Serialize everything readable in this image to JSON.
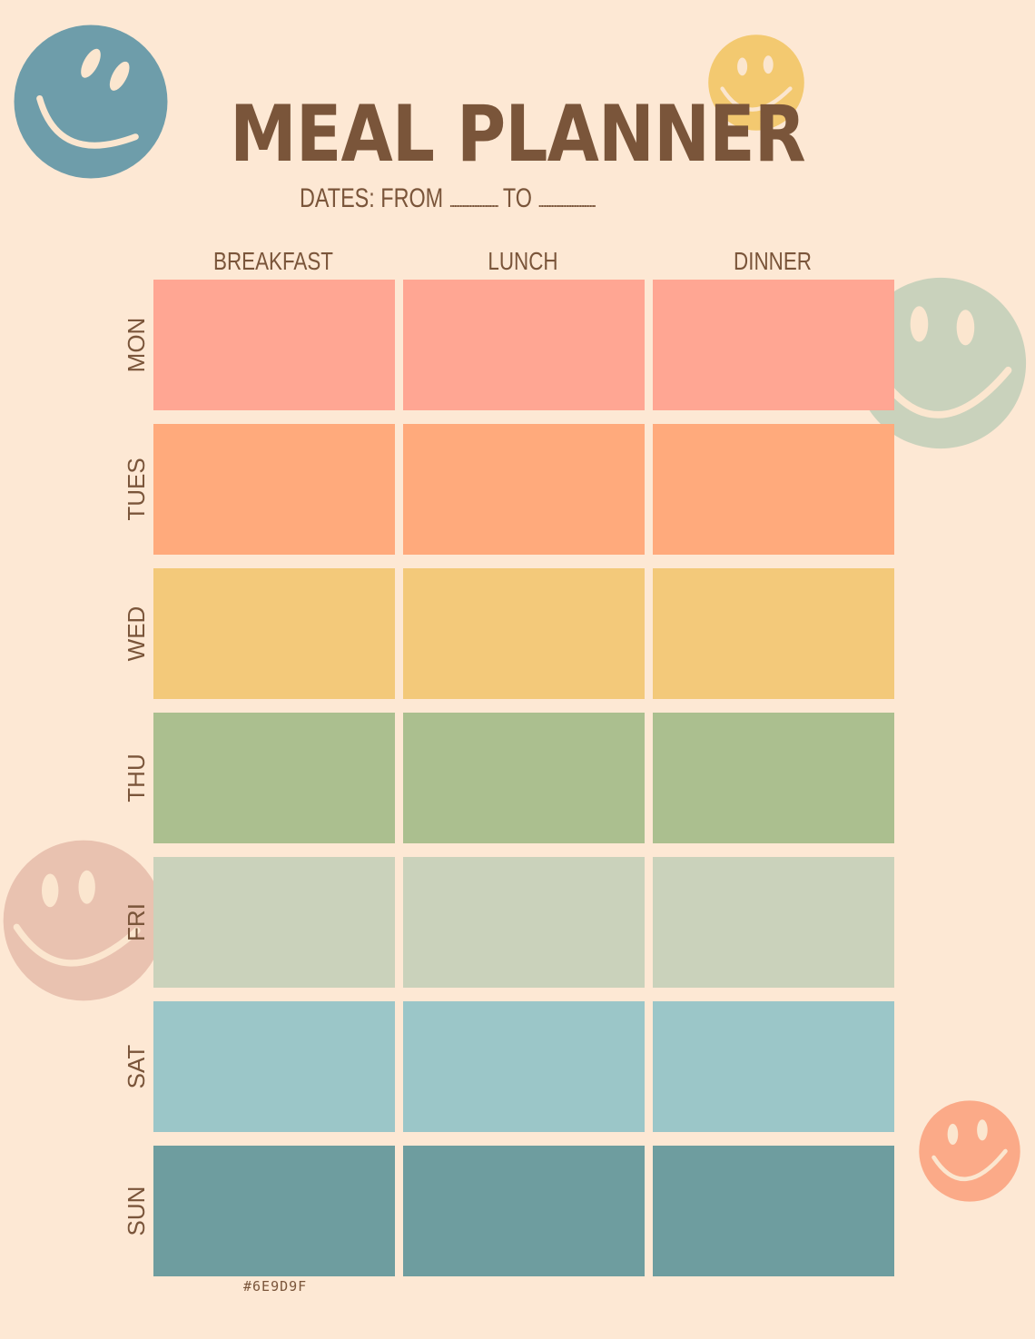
{
  "title": "MEAL PLANNER",
  "dates": {
    "label": "DATES: FROM",
    "to_label": "TO"
  },
  "columns": [
    "BREAKFAST",
    "LUNCH",
    "DINNER"
  ],
  "days": [
    {
      "label": "MON",
      "color": "#ffa693"
    },
    {
      "label": "TUES",
      "color": "#ffaa7c"
    },
    {
      "label": "WED",
      "color": "#f3c97a"
    },
    {
      "label": "THU",
      "color": "#abbf8f"
    },
    {
      "label": "FRI",
      "color": "#cad2bb"
    },
    {
      "label": "SAT",
      "color": "#9bc6c8"
    },
    {
      "label": "SUN",
      "color": "#6e9d9f"
    }
  ],
  "hex_note": "#6E9D9F",
  "colors": {
    "background": "#fde8d4",
    "text": "#7a553a",
    "smiley_blue": "#6e9daa",
    "smiley_yellow": "#f3c970",
    "smiley_sage": "#c9d2bc",
    "smiley_pink": "#e9c2b0",
    "smiley_peach": "#fbaa88",
    "smiley_face_line": "#fbe6cf"
  }
}
